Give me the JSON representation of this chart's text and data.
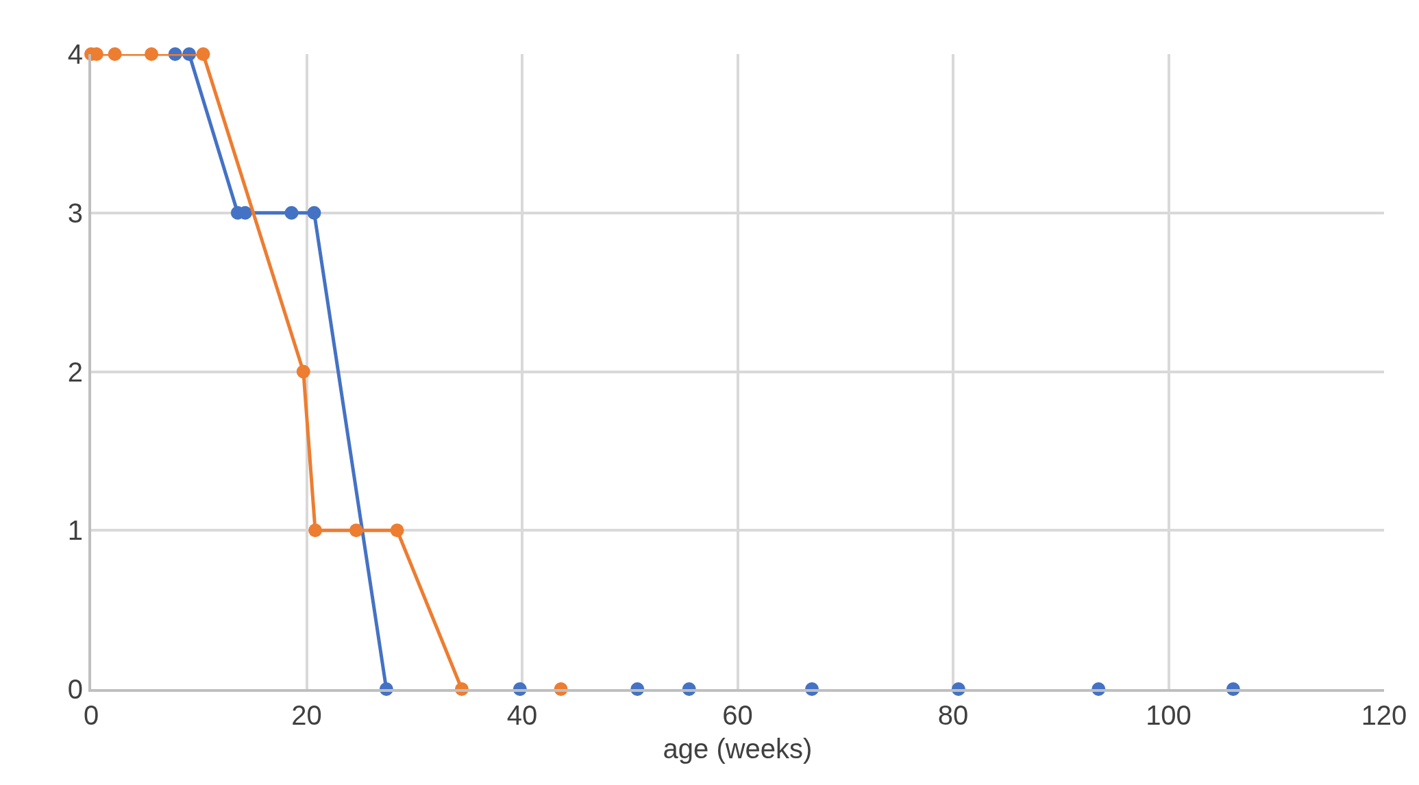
{
  "chart_data": {
    "type": "line",
    "xlabel": "age (weeks)",
    "xlim": [
      0,
      120
    ],
    "xticks": [
      0,
      20,
      40,
      60,
      80,
      100,
      120
    ],
    "ylim": [
      0,
      4
    ],
    "yticks": [
      0,
      1,
      2,
      3,
      4
    ],
    "grid": true,
    "marker": "circle",
    "line_style": "solid",
    "series": [
      {
        "color": "#4472c4",
        "x": [
          7.8,
          9.1,
          13.6,
          14.3,
          18.6,
          20.7,
          27.4
        ],
        "values": [
          4,
          4,
          3,
          3,
          3,
          3,
          0
        ]
      },
      {
        "color": "#ed7d31",
        "x": [
          0,
          0.5,
          2.2,
          5.6,
          10.4,
          19.7,
          20.8,
          24.6,
          28.4,
          34.4
        ],
        "values": [
          4,
          4,
          4,
          4,
          4,
          2,
          1,
          1,
          1,
          0
        ]
      },
      {
        "type": "scatter",
        "color": "#4472c4",
        "x": [
          39.8,
          50.7,
          55.5,
          66.9,
          80.5,
          93.5,
          106
        ],
        "values": [
          0,
          0,
          0,
          0,
          0,
          0,
          0
        ]
      },
      {
        "type": "scatter",
        "color": "#ed7d31",
        "x": [
          43.6
        ],
        "values": [
          0
        ]
      }
    ]
  }
}
